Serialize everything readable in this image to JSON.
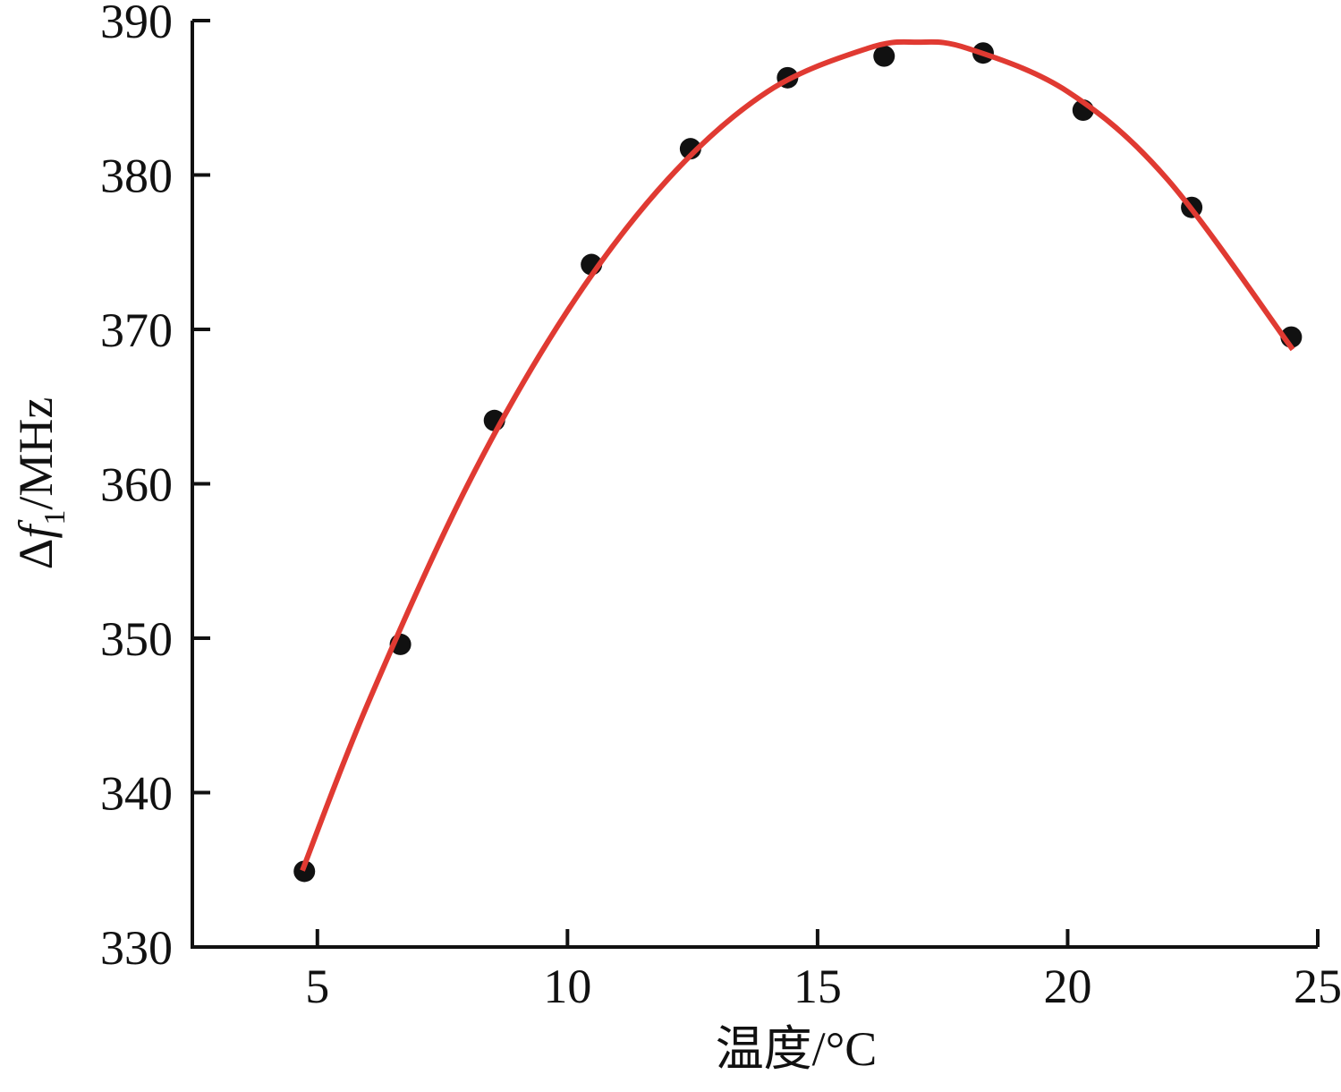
{
  "chart_data": {
    "type": "scatter",
    "x_label": "温度/°C",
    "y_label": {
      "symbol": "Δ",
      "variable": "f",
      "subscript": "1",
      "unit": "/MHz"
    },
    "xlim": [
      2.5,
      25
    ],
    "xticks": [
      5,
      10,
      15,
      20,
      25
    ],
    "ylim": [
      330,
      390
    ],
    "yticks": [
      330,
      340,
      350,
      360,
      370,
      380,
      390
    ],
    "grid": false,
    "series": [
      {
        "type": "scatter",
        "color": "#111111",
        "x": [
          4.74,
          6.66,
          8.54,
          10.48,
          12.46,
          14.4,
          16.33,
          18.31,
          20.31,
          22.48,
          24.47
        ],
        "values": [
          334.9,
          349.6,
          364.1,
          374.2,
          381.7,
          386.3,
          387.7,
          387.9,
          384.2,
          377.9,
          369.5
        ]
      },
      {
        "type": "line",
        "color": "#e03a32",
        "x": [
          4.7,
          6,
          8,
          10,
          12,
          14,
          16,
          17,
          18,
          20,
          22,
          24.5
        ],
        "values": [
          334.95,
          345.7,
          359.9,
          371.2,
          379.7,
          385.4,
          388.2,
          388.6,
          388.2,
          385.4,
          379.7,
          368.7
        ]
      }
    ]
  }
}
